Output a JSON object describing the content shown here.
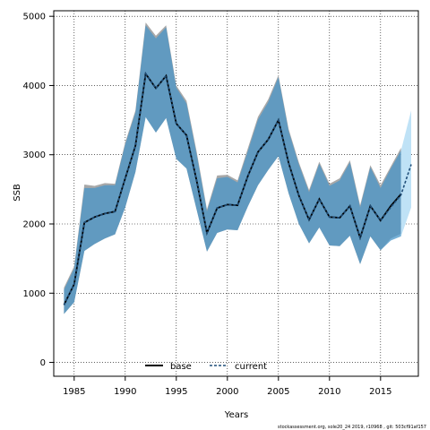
{
  "chart_data": {
    "type": "area",
    "xlabel": "Years",
    "ylabel": "SSB",
    "xlim": [
      1983,
      2018.7
    ],
    "ylim": [
      -200,
      5080
    ],
    "xticks": [
      1985,
      1990,
      1995,
      2000,
      2005,
      2010,
      2015
    ],
    "yticks": [
      0,
      1000,
      2000,
      3000,
      4000,
      5000
    ],
    "grid": true,
    "legend_position": "bottom-center",
    "colors": {
      "base_band": "#a8a8a8",
      "current_band": "#4a95c8",
      "projection_band": "#bfe2f6",
      "base_line": "#000000",
      "current_line": "#1f4e79"
    },
    "years": [
      1984,
      1985,
      1986,
      1987,
      1988,
      1989,
      1990,
      1991,
      1992,
      1993,
      1994,
      1995,
      1996,
      1997,
      1998,
      1999,
      2000,
      2001,
      2002,
      2003,
      2004,
      2005,
      2006,
      2007,
      2008,
      2009,
      2010,
      2011,
      2012,
      2013,
      2014,
      2015,
      2016,
      2017,
      2018
    ],
    "series": [
      {
        "name": "base",
        "values": [
          830,
          1130,
          2020,
          2100,
          2150,
          2180,
          2660,
          3130,
          4170,
          3960,
          4140,
          3450,
          3280,
          2620,
          1870,
          2230,
          2280,
          2270,
          2690,
          3040,
          3220,
          3500,
          2880,
          2410,
          2060,
          2360,
          2100,
          2090,
          2260,
          1800,
          2260,
          2050,
          2260,
          2430
        ],
        "lower": [
          700,
          870,
          1610,
          1710,
          1790,
          1850,
          2240,
          2750,
          3550,
          3320,
          3530,
          2940,
          2800,
          2200,
          1600,
          1870,
          1920,
          1910,
          2250,
          2560,
          2780,
          2980,
          2440,
          2000,
          1720,
          1950,
          1690,
          1680,
          1830,
          1420,
          1820,
          1620,
          1790,
          1860
        ],
        "upper": [
          1080,
          1390,
          2570,
          2550,
          2590,
          2580,
          3180,
          3640,
          4910,
          4720,
          4870,
          4000,
          3780,
          3040,
          2210,
          2700,
          2710,
          2630,
          3090,
          3550,
          3800,
          4150,
          3370,
          2890,
          2490,
          2900,
          2580,
          2660,
          2920,
          2270,
          2850,
          2560,
          2830,
          3100
        ]
      },
      {
        "name": "current",
        "values": [
          830,
          1130,
          2020,
          2100,
          2150,
          2180,
          2660,
          3130,
          4170,
          3960,
          4140,
          3450,
          3280,
          2620,
          1870,
          2230,
          2280,
          2270,
          2690,
          3040,
          3220,
          3500,
          2880,
          2410,
          2060,
          2360,
          2100,
          2090,
          2260,
          1800,
          2260,
          2050,
          2240,
          2420,
          2860
        ],
        "lower": [
          700,
          870,
          1610,
          1710,
          1790,
          1850,
          2240,
          2750,
          3540,
          3320,
          3530,
          2940,
          2800,
          2200,
          1600,
          1870,
          1920,
          1910,
          2250,
          2560,
          2780,
          2980,
          2440,
          2000,
          1720,
          1950,
          1690,
          1680,
          1830,
          1420,
          1820,
          1620,
          1760,
          1820,
          2240
        ],
        "upper": [
          1050,
          1360,
          2520,
          2520,
          2560,
          2560,
          3150,
          3610,
          4870,
          4680,
          4840,
          3970,
          3740,
          3000,
          2180,
          2660,
          2680,
          2600,
          3050,
          3510,
          3760,
          4120,
          3340,
          2860,
          2460,
          2870,
          2550,
          2630,
          2890,
          2240,
          2820,
          2520,
          2800,
          3060,
          3640
        ]
      }
    ]
  },
  "legend": {
    "base_label": "base",
    "current_label": "current"
  },
  "footer": {
    "text": "stockassessment.org, sole20_24 2019, r10968 , git: 503cf91af157"
  }
}
